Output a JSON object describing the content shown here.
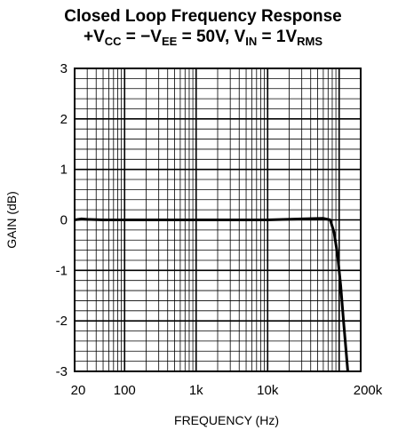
{
  "title": {
    "line1": "Closed Loop Frequency Response",
    "plus": "+",
    "v": "V",
    "cc": "CC",
    "mid": " = −V",
    "ee": "EE",
    "eq": " = 50V, V",
    "in": "IN",
    "eq2": " = 1V",
    "rms": "RMS"
  },
  "chart_data": {
    "type": "line",
    "xlabel": "FREQUENCY (Hz)",
    "ylabel": "GAIN (dB)",
    "xscale": "log",
    "xlim": [
      20,
      200000
    ],
    "ylim": [
      -3,
      3
    ],
    "x_ticks": [
      {
        "value": 20,
        "label": "20"
      },
      {
        "value": 100,
        "label": "100"
      },
      {
        "value": 1000,
        "label": "1k"
      },
      {
        "value": 10000,
        "label": "10k"
      },
      {
        "value": 200000,
        "label": "200k"
      }
    ],
    "y_ticks": [
      {
        "value": 3,
        "label": "3"
      },
      {
        "value": 2,
        "label": "2"
      },
      {
        "value": 1,
        "label": "1"
      },
      {
        "value": 0,
        "label": "0"
      },
      {
        "value": -1,
        "label": "-1"
      },
      {
        "value": -2,
        "label": "-2"
      },
      {
        "value": -3,
        "label": "-3"
      }
    ],
    "grid": true,
    "series": [
      {
        "points": [
          [
            20,
            0.0
          ],
          [
            25,
            0.02
          ],
          [
            30,
            0.01
          ],
          [
            50,
            0.0
          ],
          [
            100,
            0.0
          ],
          [
            1000,
            0.0
          ],
          [
            10000,
            0.0
          ],
          [
            30000,
            0.02
          ],
          [
            60000,
            0.03
          ],
          [
            75000,
            0.0
          ],
          [
            85000,
            -0.25
          ],
          [
            95000,
            -0.7
          ],
          [
            105000,
            -1.3
          ],
          [
            115000,
            -2.0
          ],
          [
            125000,
            -2.6
          ],
          [
            132000,
            -3.0
          ]
        ]
      }
    ]
  }
}
